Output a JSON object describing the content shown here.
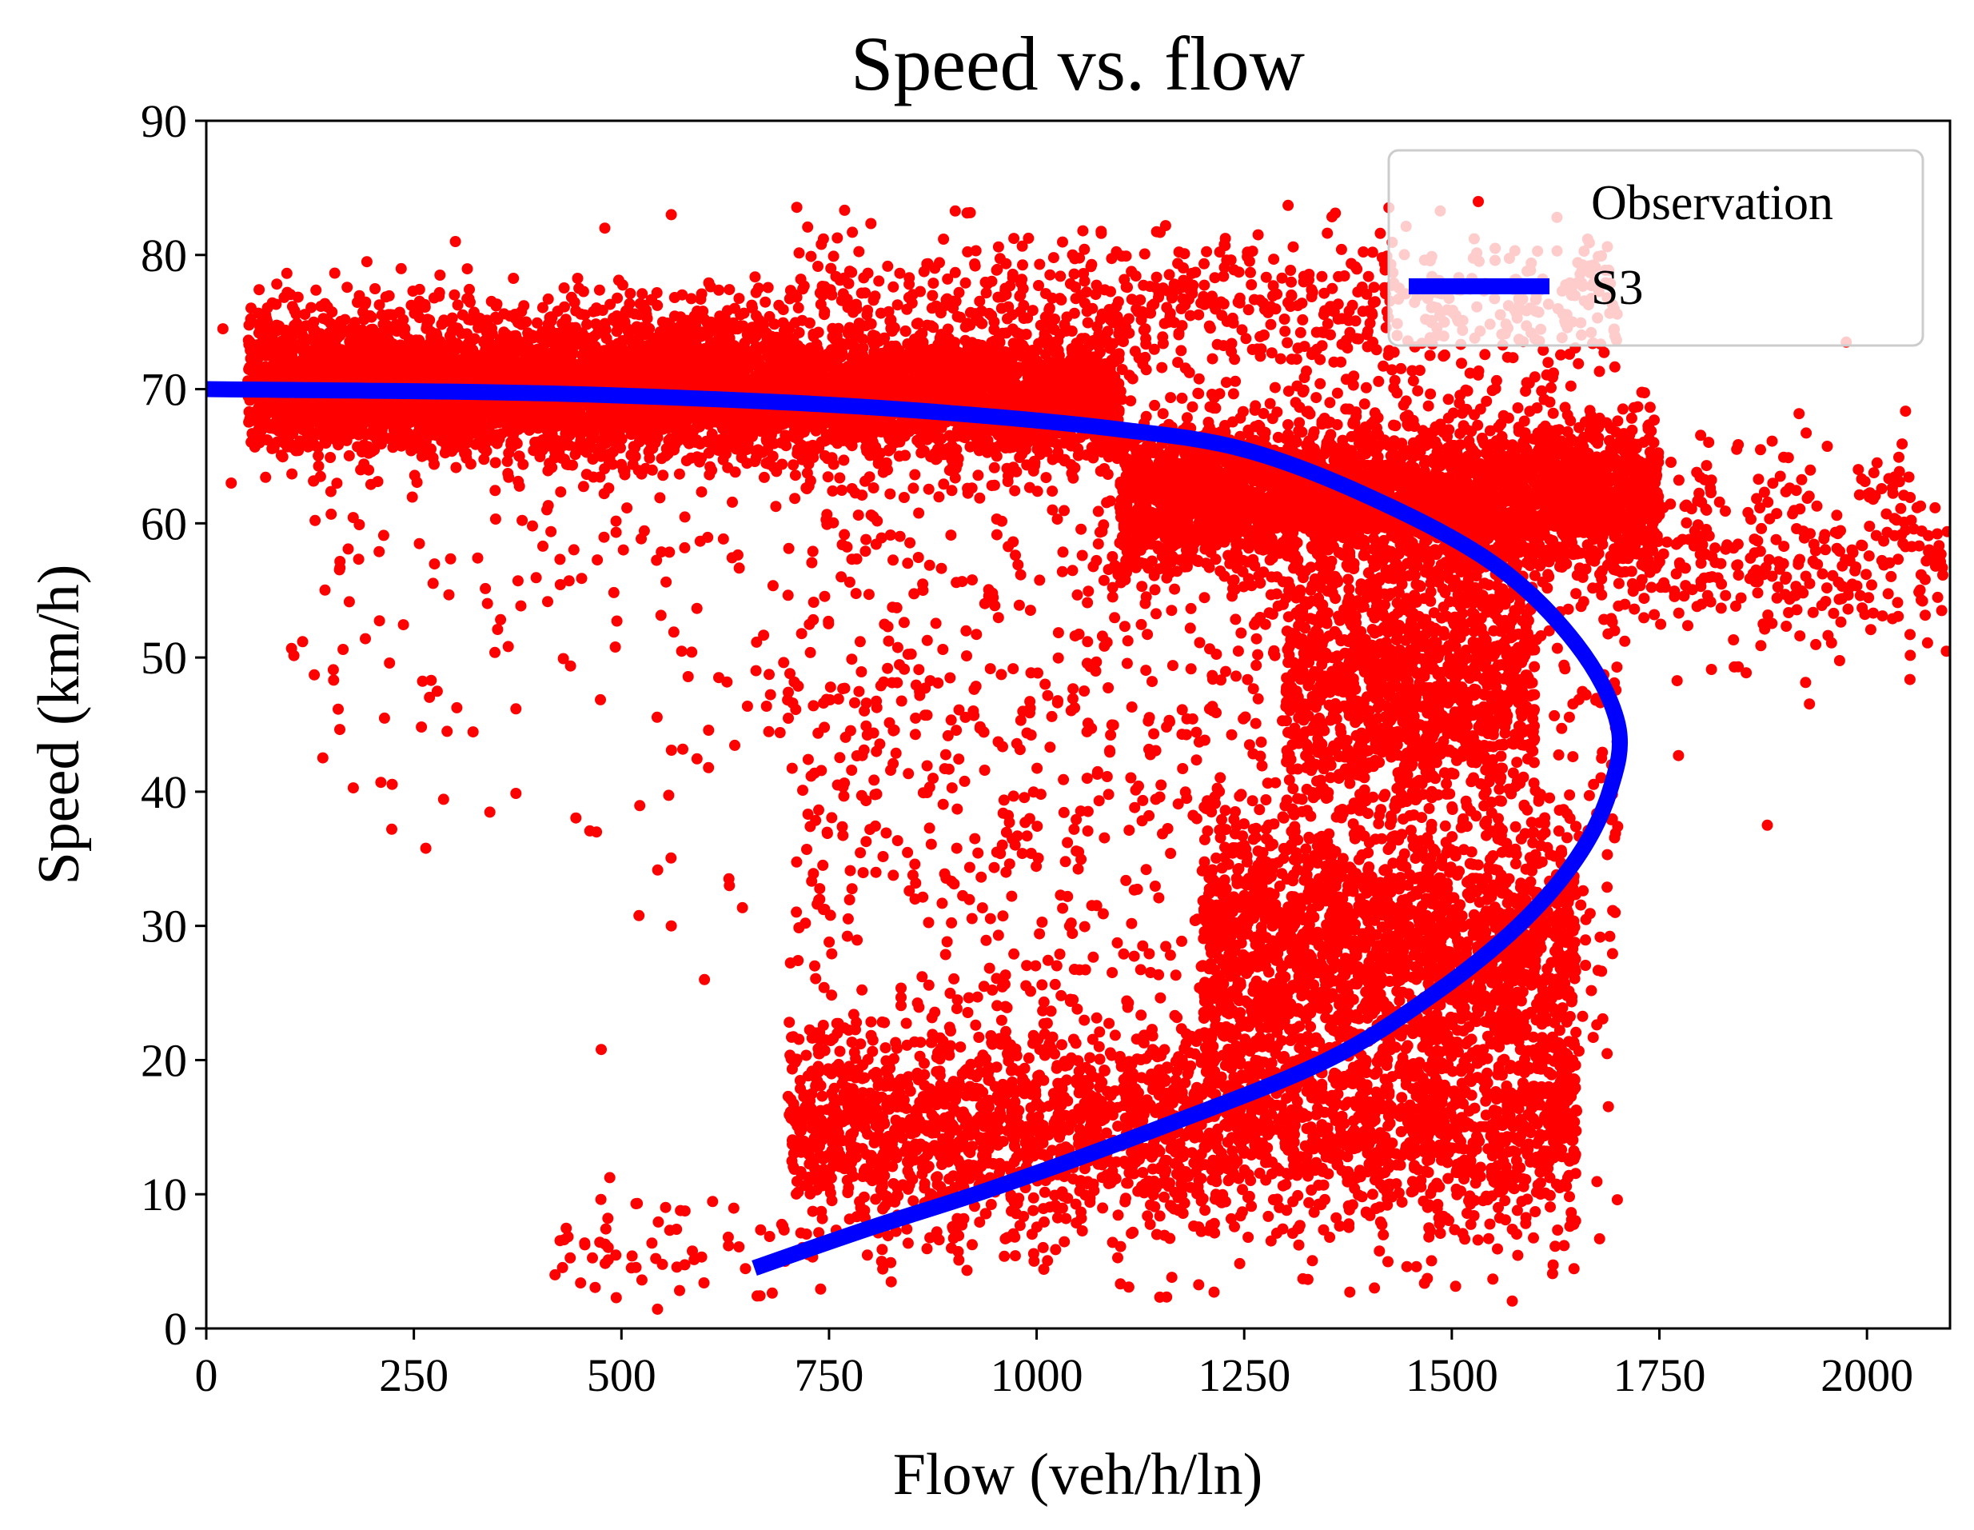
{
  "chart_data": {
    "type": "scatter",
    "title": "Speed vs. flow",
    "xlabel": "Flow (veh/h/ln)",
    "ylabel": "Speed (km/h)",
    "xlim": [
      0,
      2100
    ],
    "ylim": [
      0,
      90
    ],
    "xticks": [
      0,
      250,
      500,
      750,
      1000,
      1250,
      1500,
      1750,
      2000
    ],
    "yticks": [
      0,
      10,
      20,
      30,
      40,
      50,
      60,
      70,
      80,
      90
    ],
    "grid": false,
    "legend_position": "top-right",
    "legend": [
      "Observation",
      "S3"
    ],
    "colors": {
      "observation": "#ff0000",
      "s3": "#0000ff"
    },
    "series": [
      {
        "name": "Observation",
        "kind": "scatter",
        "color": "#ff0000",
        "clusters": [
          {
            "x_range": [
              50,
              1100
            ],
            "y_mean": 69.5,
            "y_spread": 2.2,
            "count": 5200
          },
          {
            "x_range": [
              50,
              700
            ],
            "y_mean": 73,
            "y_spread": 2.2,
            "count": 900
          },
          {
            "x_range": [
              1100,
              1750
            ],
            "y_mean": 62,
            "y_spread": 2.8,
            "count": 3200
          },
          {
            "x_range": [
              1300,
              1600
            ],
            "y_mean": 48,
            "y_spread": 5,
            "count": 1200
          },
          {
            "x_range": [
              700,
              1650
            ],
            "y_mean": 15,
            "y_spread": 4,
            "count": 2600
          },
          {
            "x_range": [
              1200,
              1650
            ],
            "y_mean": 28,
            "y_spread": 5,
            "count": 1800
          },
          {
            "x_range": [
              700,
              1700
            ],
            "y_mean": 45,
            "y_spread": 20,
            "count": 1600
          },
          {
            "x_range": [
              100,
              700
            ],
            "y_mean": 55,
            "y_spread": 10,
            "count": 180
          },
          {
            "x_range": [
              700,
              1700
            ],
            "y_mean": 76,
            "y_spread": 3,
            "count": 700
          },
          {
            "x_range": [
              1700,
              2100
            ],
            "y_mean": 58,
            "y_spread": 4,
            "count": 350
          },
          {
            "x_range": [
              420,
              700
            ],
            "y_mean": 6,
            "y_spread": 2,
            "count": 60
          }
        ],
        "sample_points": [
          [
            420,
            4
          ],
          [
            470,
            37
          ],
          [
            560,
            30
          ],
          [
            600,
            26
          ],
          [
            630,
            33
          ],
          [
            760,
            22
          ],
          [
            1880,
            37.5
          ],
          [
            1975,
            73.5
          ],
          [
            2090,
            53.5
          ],
          [
            20,
            74.5
          ],
          [
            30,
            63
          ],
          [
            480,
            82
          ],
          [
            560,
            83
          ],
          [
            300,
            81
          ],
          [
            290,
            44.5
          ]
        ]
      },
      {
        "name": "S3",
        "kind": "line",
        "color": "#0000ff",
        "points": [
          [
            0,
            70
          ],
          [
            400,
            69.7
          ],
          [
            700,
            69
          ],
          [
            900,
            68.2
          ],
          [
            1100,
            67
          ],
          [
            1250,
            65.5
          ],
          [
            1400,
            62
          ],
          [
            1550,
            57
          ],
          [
            1650,
            51
          ],
          [
            1700,
            45
          ],
          [
            1690,
            40
          ],
          [
            1650,
            35
          ],
          [
            1580,
            30
          ],
          [
            1480,
            25
          ],
          [
            1350,
            20
          ],
          [
            1150,
            15
          ],
          [
            950,
            10.5
          ],
          [
            800,
            7.5
          ],
          [
            660,
            4.5
          ]
        ]
      }
    ]
  }
}
